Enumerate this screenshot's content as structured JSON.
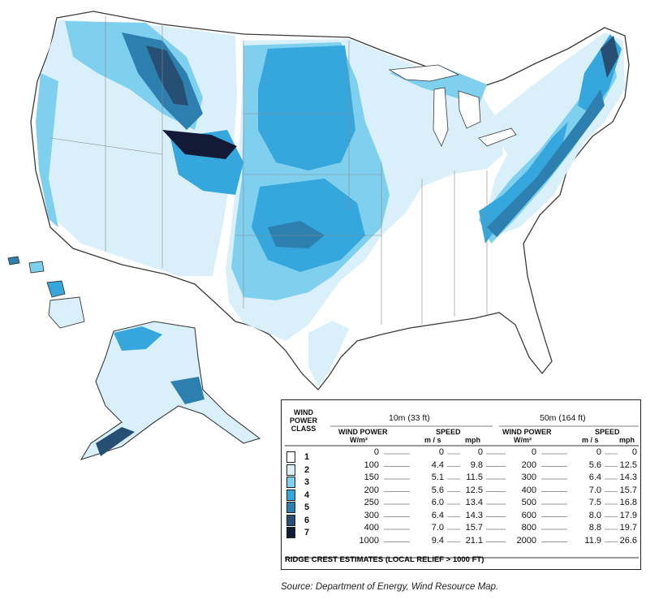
{
  "legend": {
    "class_header": [
      "WIND",
      "POWER",
      "CLASS"
    ],
    "group_10m": "10m (33 ft)",
    "group_50m": "50m (164 ft)",
    "wind_power_label": "WIND POWER",
    "wind_power_unit": "W/m²",
    "speed_label": "SPEED",
    "ms_label": "m / s",
    "mph_label": "mph",
    "classes": [
      {
        "cls": "1",
        "color": "#ffffff"
      },
      {
        "cls": "2",
        "color": "#d9f0fb"
      },
      {
        "cls": "3",
        "color": "#7fd0ee"
      },
      {
        "cls": "4",
        "color": "#35a7dc"
      },
      {
        "cls": "5",
        "color": "#2c7fae"
      },
      {
        "cls": "6",
        "color": "#274f73"
      },
      {
        "cls": "7",
        "color": "#121a36"
      }
    ],
    "rows": [
      {
        "p10": "0",
        "ms10": "0",
        "mph10": "0",
        "p50": "0",
        "ms50": "0",
        "mph50": "0"
      },
      {
        "p10": "100",
        "ms10": "4.4",
        "mph10": "9.8",
        "p50": "200",
        "ms50": "5.6",
        "mph50": "12.5"
      },
      {
        "p10": "150",
        "ms10": "5.1",
        "mph10": "11.5",
        "p50": "300",
        "ms50": "6.4",
        "mph50": "14.3"
      },
      {
        "p10": "200",
        "ms10": "5.6",
        "mph10": "12.5",
        "p50": "400",
        "ms50": "7.0",
        "mph50": "15.7"
      },
      {
        "p10": "250",
        "ms10": "6.0",
        "mph10": "13.4",
        "p50": "500",
        "ms50": "7.5",
        "mph50": "16.8"
      },
      {
        "p10": "300",
        "ms10": "6.4",
        "mph10": "14.3",
        "p50": "600",
        "ms50": "8.0",
        "mph50": "17.9"
      },
      {
        "p10": "400",
        "ms10": "7.0",
        "mph10": "15.7",
        "p50": "800",
        "ms50": "8.8",
        "mph50": "19.7"
      },
      {
        "p10": "1000",
        "ms10": "9.4",
        "mph10": "21.1",
        "p50": "2000",
        "ms50": "11.9",
        "mph50": "26.6"
      }
    ],
    "footnote": "RIDGE CREST ESTIMATES (LOCAL RELIEF > 1000 FT)"
  },
  "source": "Source: Department of Energy, Wind Resource Map.",
  "colors": {
    "class1": "#ffffff",
    "class2": "#d9f0fb",
    "class3": "#7fd0ee",
    "class4": "#35a7dc",
    "class5": "#2c7fae",
    "class6": "#274f73",
    "class7": "#121a36",
    "outline": "#3a3a3a"
  }
}
